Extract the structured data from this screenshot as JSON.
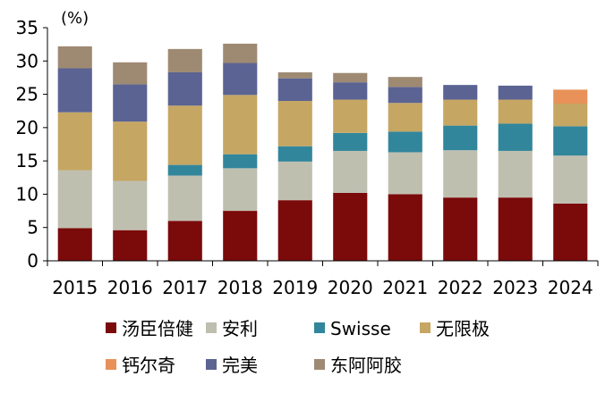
{
  "chart_data": {
    "type": "bar",
    "stacked": true,
    "title": "",
    "xlabel": "",
    "ylabel": "(%)",
    "ylim": [
      0,
      35
    ],
    "yticks": [
      0,
      5,
      10,
      15,
      20,
      25,
      30,
      35
    ],
    "grid": false,
    "legend_position": "bottom",
    "categories": [
      "2015",
      "2016",
      "2017",
      "2018",
      "2019",
      "2020",
      "2021",
      "2022",
      "2023",
      "2024"
    ],
    "series": [
      {
        "name": "汤臣倍健",
        "color": "#7b0a0a",
        "values": [
          4.9,
          4.6,
          6.0,
          7.5,
          9.1,
          10.2,
          10.0,
          9.5,
          9.5,
          8.6
        ]
      },
      {
        "name": "安利",
        "color": "#bfbfb0",
        "values": [
          8.7,
          7.4,
          6.8,
          6.4,
          5.8,
          6.3,
          6.3,
          7.1,
          7.0,
          7.2
        ]
      },
      {
        "name": "Swisse",
        "color": "#32869b",
        "values": [
          0,
          0,
          1.6,
          2.1,
          2.3,
          2.7,
          3.1,
          3.7,
          4.1,
          4.4
        ]
      },
      {
        "name": "无限极",
        "color": "#c5a663",
        "values": [
          8.7,
          8.9,
          8.9,
          8.9,
          6.8,
          5.0,
          4.3,
          3.9,
          3.6,
          3.4
        ]
      },
      {
        "name": "钙尔奇",
        "color": "#e8925a",
        "values": [
          0,
          0,
          0,
          0,
          0,
          0,
          0,
          0,
          0,
          2.1
        ]
      },
      {
        "name": "完美",
        "color": "#5b6393",
        "values": [
          6.6,
          5.6,
          5.0,
          4.8,
          3.4,
          2.6,
          2.4,
          2.2,
          2.1,
          0
        ]
      },
      {
        "name": "东阿阿胶",
        "color": "#9e8a72",
        "values": [
          3.3,
          3.3,
          3.5,
          2.9,
          0.9,
          1.4,
          1.5,
          0,
          0,
          0
        ]
      }
    ],
    "legend_rows": [
      [
        "汤臣倍健",
        "安利",
        "Swisse",
        "无限极"
      ],
      [
        "钙尔奇",
        "完美",
        "东阿阿胶"
      ]
    ]
  }
}
